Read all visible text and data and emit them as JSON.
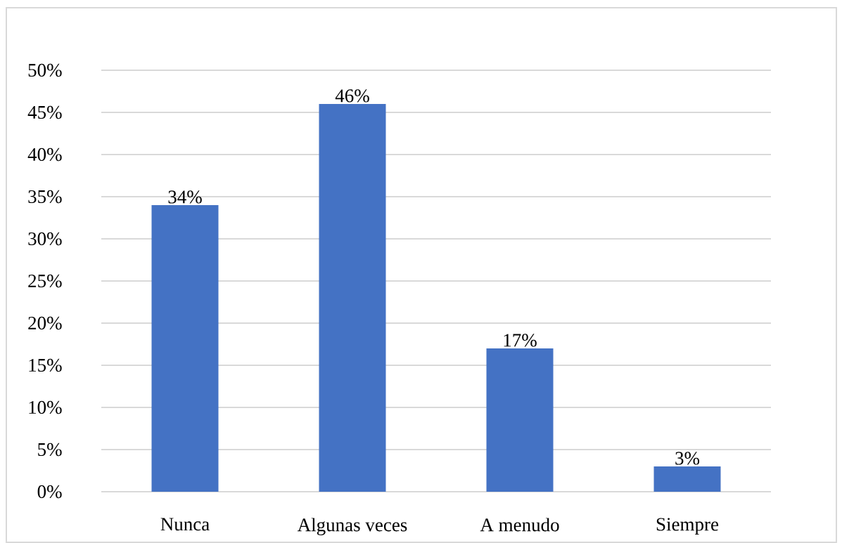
{
  "chart_data": {
    "type": "bar",
    "categories": [
      "Nunca",
      "Algunas veces",
      "A menudo",
      "Siempre"
    ],
    "values": [
      34,
      46,
      17,
      3
    ],
    "color": "#4472c4",
    "value_labels": [
      "34%",
      "46%",
      "17%",
      "3%"
    ],
    "ylim": [
      0,
      50
    ],
    "yticks": [
      {
        "value": 0,
        "label": "0%"
      },
      {
        "value": 5,
        "label": "5%"
      },
      {
        "value": 10,
        "label": "10%"
      },
      {
        "value": 15,
        "label": "15%"
      },
      {
        "value": 20,
        "label": "20%"
      },
      {
        "value": 25,
        "label": "25%"
      },
      {
        "value": 30,
        "label": "30%"
      },
      {
        "value": 35,
        "label": "35%"
      },
      {
        "value": 40,
        "label": "40%"
      },
      {
        "value": 45,
        "label": "45%"
      },
      {
        "value": 50,
        "label": "50%"
      }
    ],
    "grid": "y"
  }
}
